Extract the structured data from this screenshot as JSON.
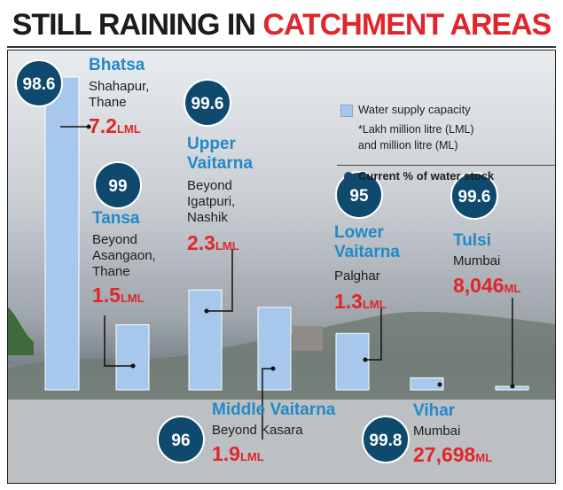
{
  "title": {
    "part1": "STILL RAINING IN",
    "part2": "CATCHMENT AREAS"
  },
  "legend": {
    "capacity_label": "Water supply capacity",
    "unit_note_line1": "*Lakh million litre (LML)",
    "unit_note_line2": "and million litre (ML)",
    "stock_label": "Current % of water stock"
  },
  "colors": {
    "bar": "#a7c8ec",
    "name": "#2389c7",
    "capacity": "#e0262c",
    "circle": "#0f4a6e",
    "title_red": "#e0262c"
  },
  "lakes": [
    {
      "name": "Bhatsa",
      "location": [
        "Shahapur,",
        "Thane"
      ],
      "capacity_value": "7.2",
      "capacity_unit": "LML",
      "stock": "98.6"
    },
    {
      "name": "Tansa",
      "location": [
        "Beyond",
        "Asangaon,",
        "Thane"
      ],
      "capacity_value": "1.5",
      "capacity_unit": "LML",
      "stock": "99"
    },
    {
      "name": "Upper Vaitarna",
      "name_lines": [
        "Upper",
        "Vaitarna"
      ],
      "location": [
        "Beyond",
        "Igatpuri,",
        "Nashik"
      ],
      "capacity_value": "2.3",
      "capacity_unit": "LML",
      "stock": "99.6"
    },
    {
      "name": "Middle Vaitarna",
      "location": [
        "Beyond Kasara"
      ],
      "capacity_value": "1.9",
      "capacity_unit": "LML",
      "stock": "96"
    },
    {
      "name": "Lower Vaitarna",
      "name_lines": [
        "Lower",
        "Vaitarna"
      ],
      "location": [
        "Palghar"
      ],
      "capacity_value": "1.3",
      "capacity_unit": "LML",
      "stock": "95"
    },
    {
      "name": "Vihar",
      "location": [
        "Mumbai"
      ],
      "capacity_value": "27,698",
      "capacity_unit": "ML",
      "stock": "99.8"
    },
    {
      "name": "Tulsi",
      "location": [
        "Mumbai"
      ],
      "capacity_value": "8,046",
      "capacity_unit": "ML",
      "stock": "99.6"
    }
  ],
  "chart_data": {
    "type": "bar",
    "title": "STILL RAINING IN CATCHMENT AREAS",
    "categories": [
      "Bhatsa",
      "Tansa",
      "Upper Vaitarna",
      "Middle Vaitarna",
      "Lower Vaitarna",
      "Vihar",
      "Tulsi"
    ],
    "series": [
      {
        "name": "Water supply capacity",
        "unit": "LML",
        "values": [
          7.2,
          1.5,
          2.3,
          1.9,
          1.3,
          0.27698,
          0.08046
        ]
      },
      {
        "name": "Current % of water stock",
        "unit": "%",
        "values": [
          98.6,
          99,
          99.6,
          96,
          95,
          99.8,
          99.6
        ]
      }
    ],
    "xlabel": "",
    "ylabel": "",
    "grid": false,
    "legend": "top-right"
  }
}
